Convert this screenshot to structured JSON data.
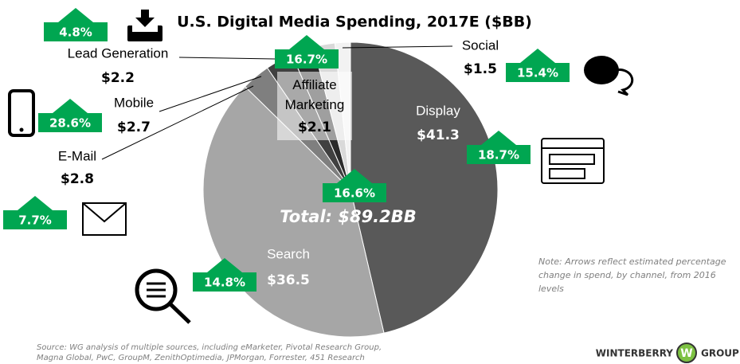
{
  "chart_data": {
    "type": "pie",
    "title": "U.S. Digital Media Spending, 2017E ($BB)",
    "categories": [
      "Display",
      "Search",
      "E-Mail",
      "Mobile",
      "Lead Generation",
      "Affiliate Marketing",
      "Social"
    ],
    "values": [
      41.3,
      36.5,
      2.8,
      2.7,
      2.2,
      2.1,
      1.5
    ],
    "value_labels": [
      "$41.3",
      "$36.5",
      "$2.8",
      "$2.7",
      "$2.2",
      "$2.1",
      "$1.5"
    ],
    "colors": [
      "#595959",
      "#a6a6a6",
      "#7f7f7f",
      "#404040",
      "#2b2b2b",
      "#d9d9d9",
      "#f2f2f2"
    ],
    "changes": [
      18.7,
      14.8,
      7.7,
      28.6,
      4.8,
      16.7,
      15.4
    ],
    "change_labels": [
      "18.7%",
      "14.8%",
      "7.7%",
      "28.6%",
      "4.8%",
      "16.7%",
      "15.4%"
    ],
    "change_color": "#00a651",
    "total": 89.2,
    "total_label": "Total: $89.2BB",
    "total_change": 16.6,
    "total_change_label": "16.6%",
    "note": "Note: Arrows reflect estimated percentage change in spend, by channel, from 2016 levels",
    "source": "Source: WG analysis of multiple sources, including eMarketer, Pivotal Research Group, Magna Global, PwC, GroupM, ZenithOptimedia, JPMorgan, Forrester, 451 Research",
    "logo": {
      "left": "WINTERBERRY",
      "mark": "W",
      "right": "GROUP"
    }
  }
}
